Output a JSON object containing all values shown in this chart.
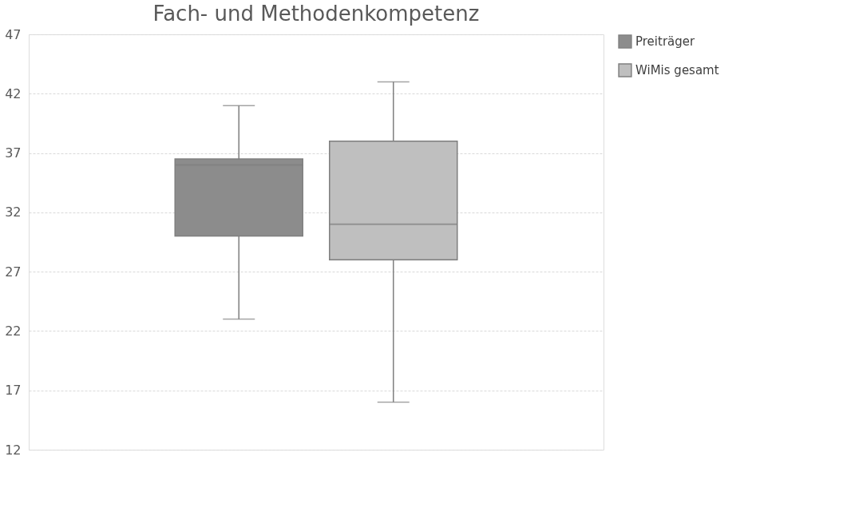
{
  "chart_data": {
    "type": "box",
    "title": "Fach- und Methodenkompetenz",
    "categories": [
      null
    ],
    "series": [
      {
        "name": "Preiträger",
        "color": "#8c8c8c",
        "boxes": [
          {
            "low": 23,
            "q1": 30,
            "median": 36,
            "q3": 36.5,
            "high": 41
          }
        ]
      },
      {
        "name": "WiMis gesamt",
        "color": "#bfbfbf",
        "boxes": [
          {
            "low": 16,
            "q1": 28,
            "median": 31,
            "q3": 38,
            "high": 43
          }
        ]
      }
    ],
    "ylim": [
      12,
      47
    ],
    "yticks": [
      12,
      17,
      22,
      27,
      32,
      37,
      42,
      47
    ],
    "grid": "y",
    "legend": "right",
    "tick_labels": "y"
  }
}
